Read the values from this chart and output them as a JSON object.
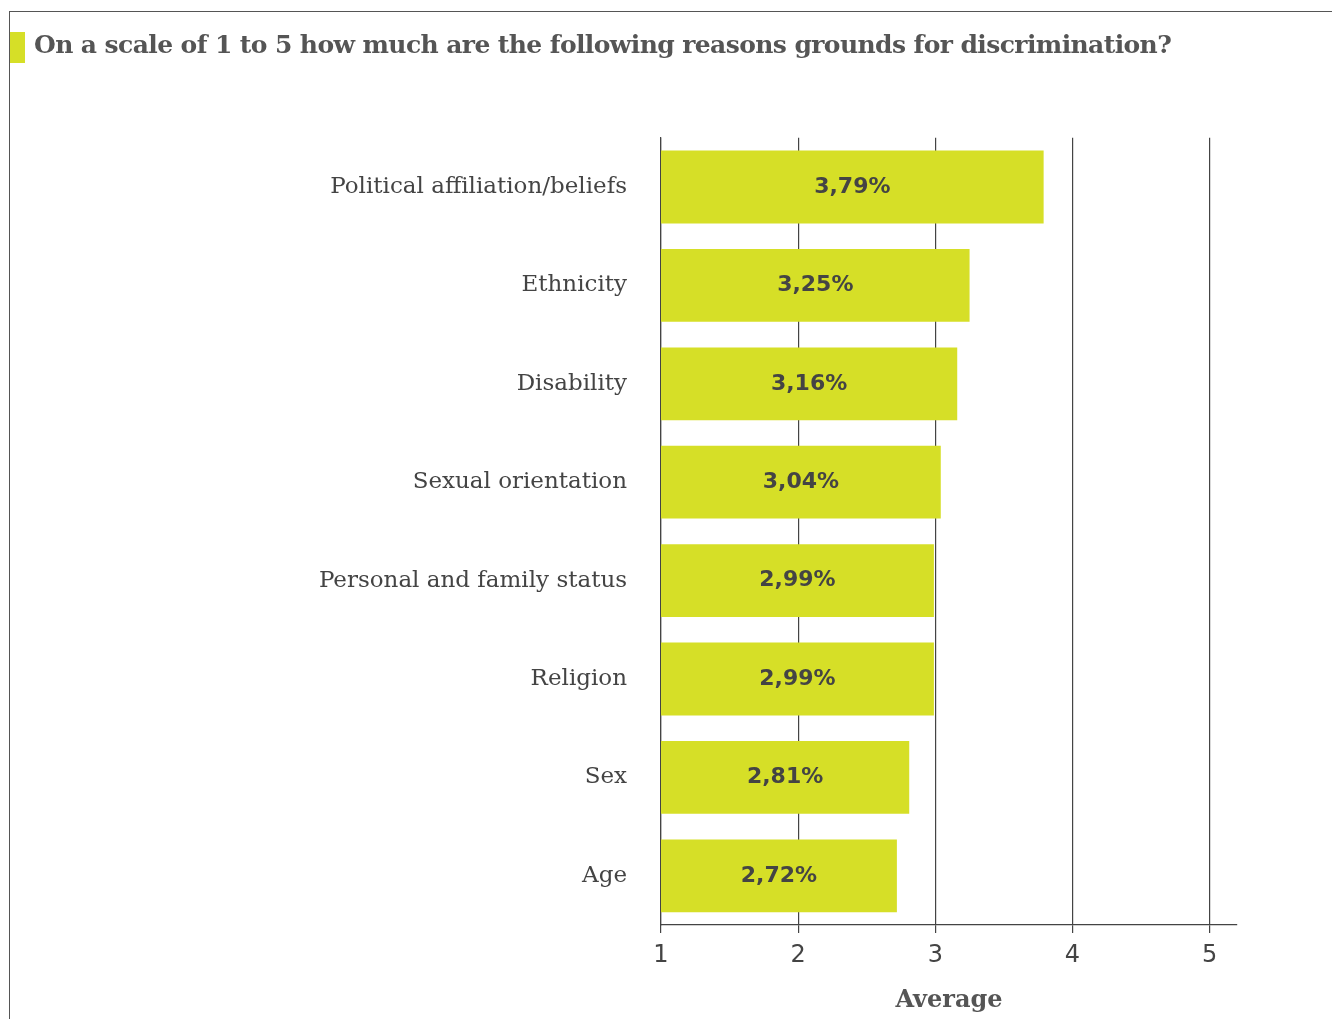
{
  "chart_data": {
    "type": "bar",
    "orientation": "horizontal",
    "title": "On a scale of 1 to 5 how much are the following reasons grounds for discrimination?",
    "xlabel": "Average",
    "categories": [
      "Political affiliation/beliefs",
      "Ethnicity",
      "Disability",
      "Sexual orientation",
      "Personal and family status",
      "Religion",
      "Sex",
      "Age"
    ],
    "values": [
      3.79,
      3.25,
      3.16,
      3.04,
      2.99,
      2.99,
      2.81,
      2.72
    ],
    "value_labels": [
      "3,79%",
      "3,25%",
      "3,16%",
      "3,04%",
      "2,99%",
      "2,99%",
      "2,81%",
      "2,72%"
    ],
    "color": "#d6df27",
    "xlim": [
      1,
      5.2
    ],
    "xticks": [
      1,
      2,
      3,
      4,
      5
    ],
    "grid": "x",
    "legend": false
  }
}
